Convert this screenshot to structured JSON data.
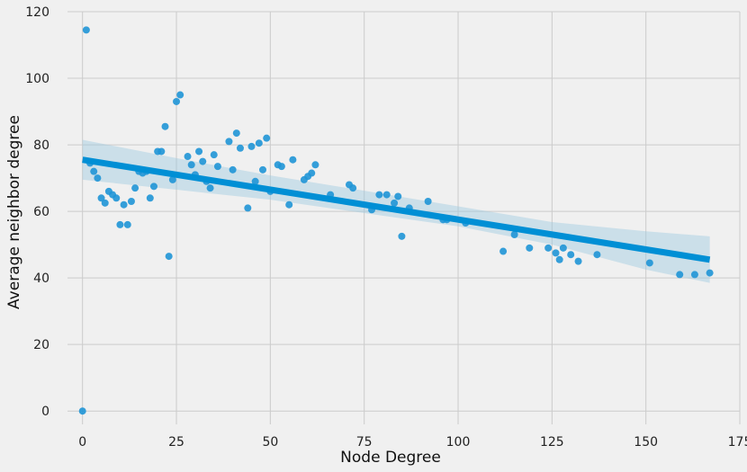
{
  "chart_data": {
    "type": "scatter",
    "title": "",
    "xlabel": "Node Degree",
    "ylabel": "Average neighbor degree",
    "xlim": [
      -4,
      175
    ],
    "ylim": [
      -4,
      120
    ],
    "xticks": [
      0,
      25,
      50,
      75,
      100,
      125,
      150,
      175
    ],
    "yticks": [
      0,
      20,
      40,
      60,
      80,
      100,
      120
    ],
    "grid": true,
    "colors": {
      "points": "#1f95d6",
      "line": "#008fd5",
      "band": "#9ecae1",
      "grid": "#cbcbcb",
      "background": "#f0f0f0"
    },
    "points": [
      [
        0,
        0
      ],
      [
        1,
        114.5
      ],
      [
        2,
        74.5
      ],
      [
        3,
        72
      ],
      [
        4,
        70
      ],
      [
        5,
        64
      ],
      [
        6,
        62.5
      ],
      [
        7,
        66
      ],
      [
        8,
        65
      ],
      [
        9,
        64
      ],
      [
        10,
        56
      ],
      [
        11,
        62
      ],
      [
        12,
        56
      ],
      [
        13,
        63
      ],
      [
        14,
        67
      ],
      [
        15,
        72
      ],
      [
        16,
        71.5
      ],
      [
        17,
        72
      ],
      [
        18,
        64
      ],
      [
        19,
        67.5
      ],
      [
        20,
        78
      ],
      [
        21,
        78
      ],
      [
        22,
        85.5
      ],
      [
        23,
        46.5
      ],
      [
        24,
        69.5
      ],
      [
        25,
        93
      ],
      [
        26,
        95
      ],
      [
        28,
        76.5
      ],
      [
        29,
        74
      ],
      [
        30,
        71
      ],
      [
        31,
        78
      ],
      [
        32,
        75
      ],
      [
        33,
        69
      ],
      [
        34,
        67
      ],
      [
        35,
        77
      ],
      [
        36,
        73.5
      ],
      [
        39,
        81
      ],
      [
        40,
        72.5
      ],
      [
        41,
        83.5
      ],
      [
        42,
        79
      ],
      [
        44,
        61
      ],
      [
        45,
        79.5
      ],
      [
        46,
        69
      ],
      [
        47,
        80.5
      ],
      [
        48,
        72.5
      ],
      [
        49,
        82
      ],
      [
        50,
        66
      ],
      [
        52,
        74
      ],
      [
        53,
        73.5
      ],
      [
        55,
        62
      ],
      [
        56,
        75.5
      ],
      [
        59,
        69.5
      ],
      [
        60,
        70.5
      ],
      [
        61,
        71.5
      ],
      [
        62,
        74
      ],
      [
        66,
        65
      ],
      [
        71,
        68
      ],
      [
        72,
        67
      ],
      [
        77,
        60.5
      ],
      [
        79,
        65
      ],
      [
        81,
        65
      ],
      [
        83,
        62.5
      ],
      [
        84,
        64.5
      ],
      [
        85,
        52.5
      ],
      [
        87,
        61
      ],
      [
        92,
        63
      ],
      [
        96,
        57.5
      ],
      [
        97,
        57.5
      ],
      [
        102,
        56.5
      ],
      [
        112,
        48
      ],
      [
        115,
        53
      ],
      [
        119,
        49
      ],
      [
        124,
        49
      ],
      [
        126,
        47.5
      ],
      [
        127,
        45.5
      ],
      [
        128,
        49
      ],
      [
        130,
        47
      ],
      [
        132,
        45
      ],
      [
        137,
        47
      ],
      [
        151,
        44.5
      ],
      [
        159,
        41
      ],
      [
        163,
        41
      ],
      [
        167,
        41.5
      ]
    ],
    "regression": {
      "x": [
        0,
        167
      ],
      "y": [
        75.5,
        45.5
      ]
    },
    "confidence_band": {
      "x": [
        0,
        25,
        50,
        75,
        100,
        125,
        150,
        167
      ],
      "upper": [
        81.5,
        76,
        70.8,
        66.2,
        61.5,
        56.8,
        54,
        52.5
      ],
      "lower": [
        69.5,
        66.5,
        63.5,
        59.5,
        55.5,
        50,
        42.5,
        38.5
      ]
    }
  }
}
